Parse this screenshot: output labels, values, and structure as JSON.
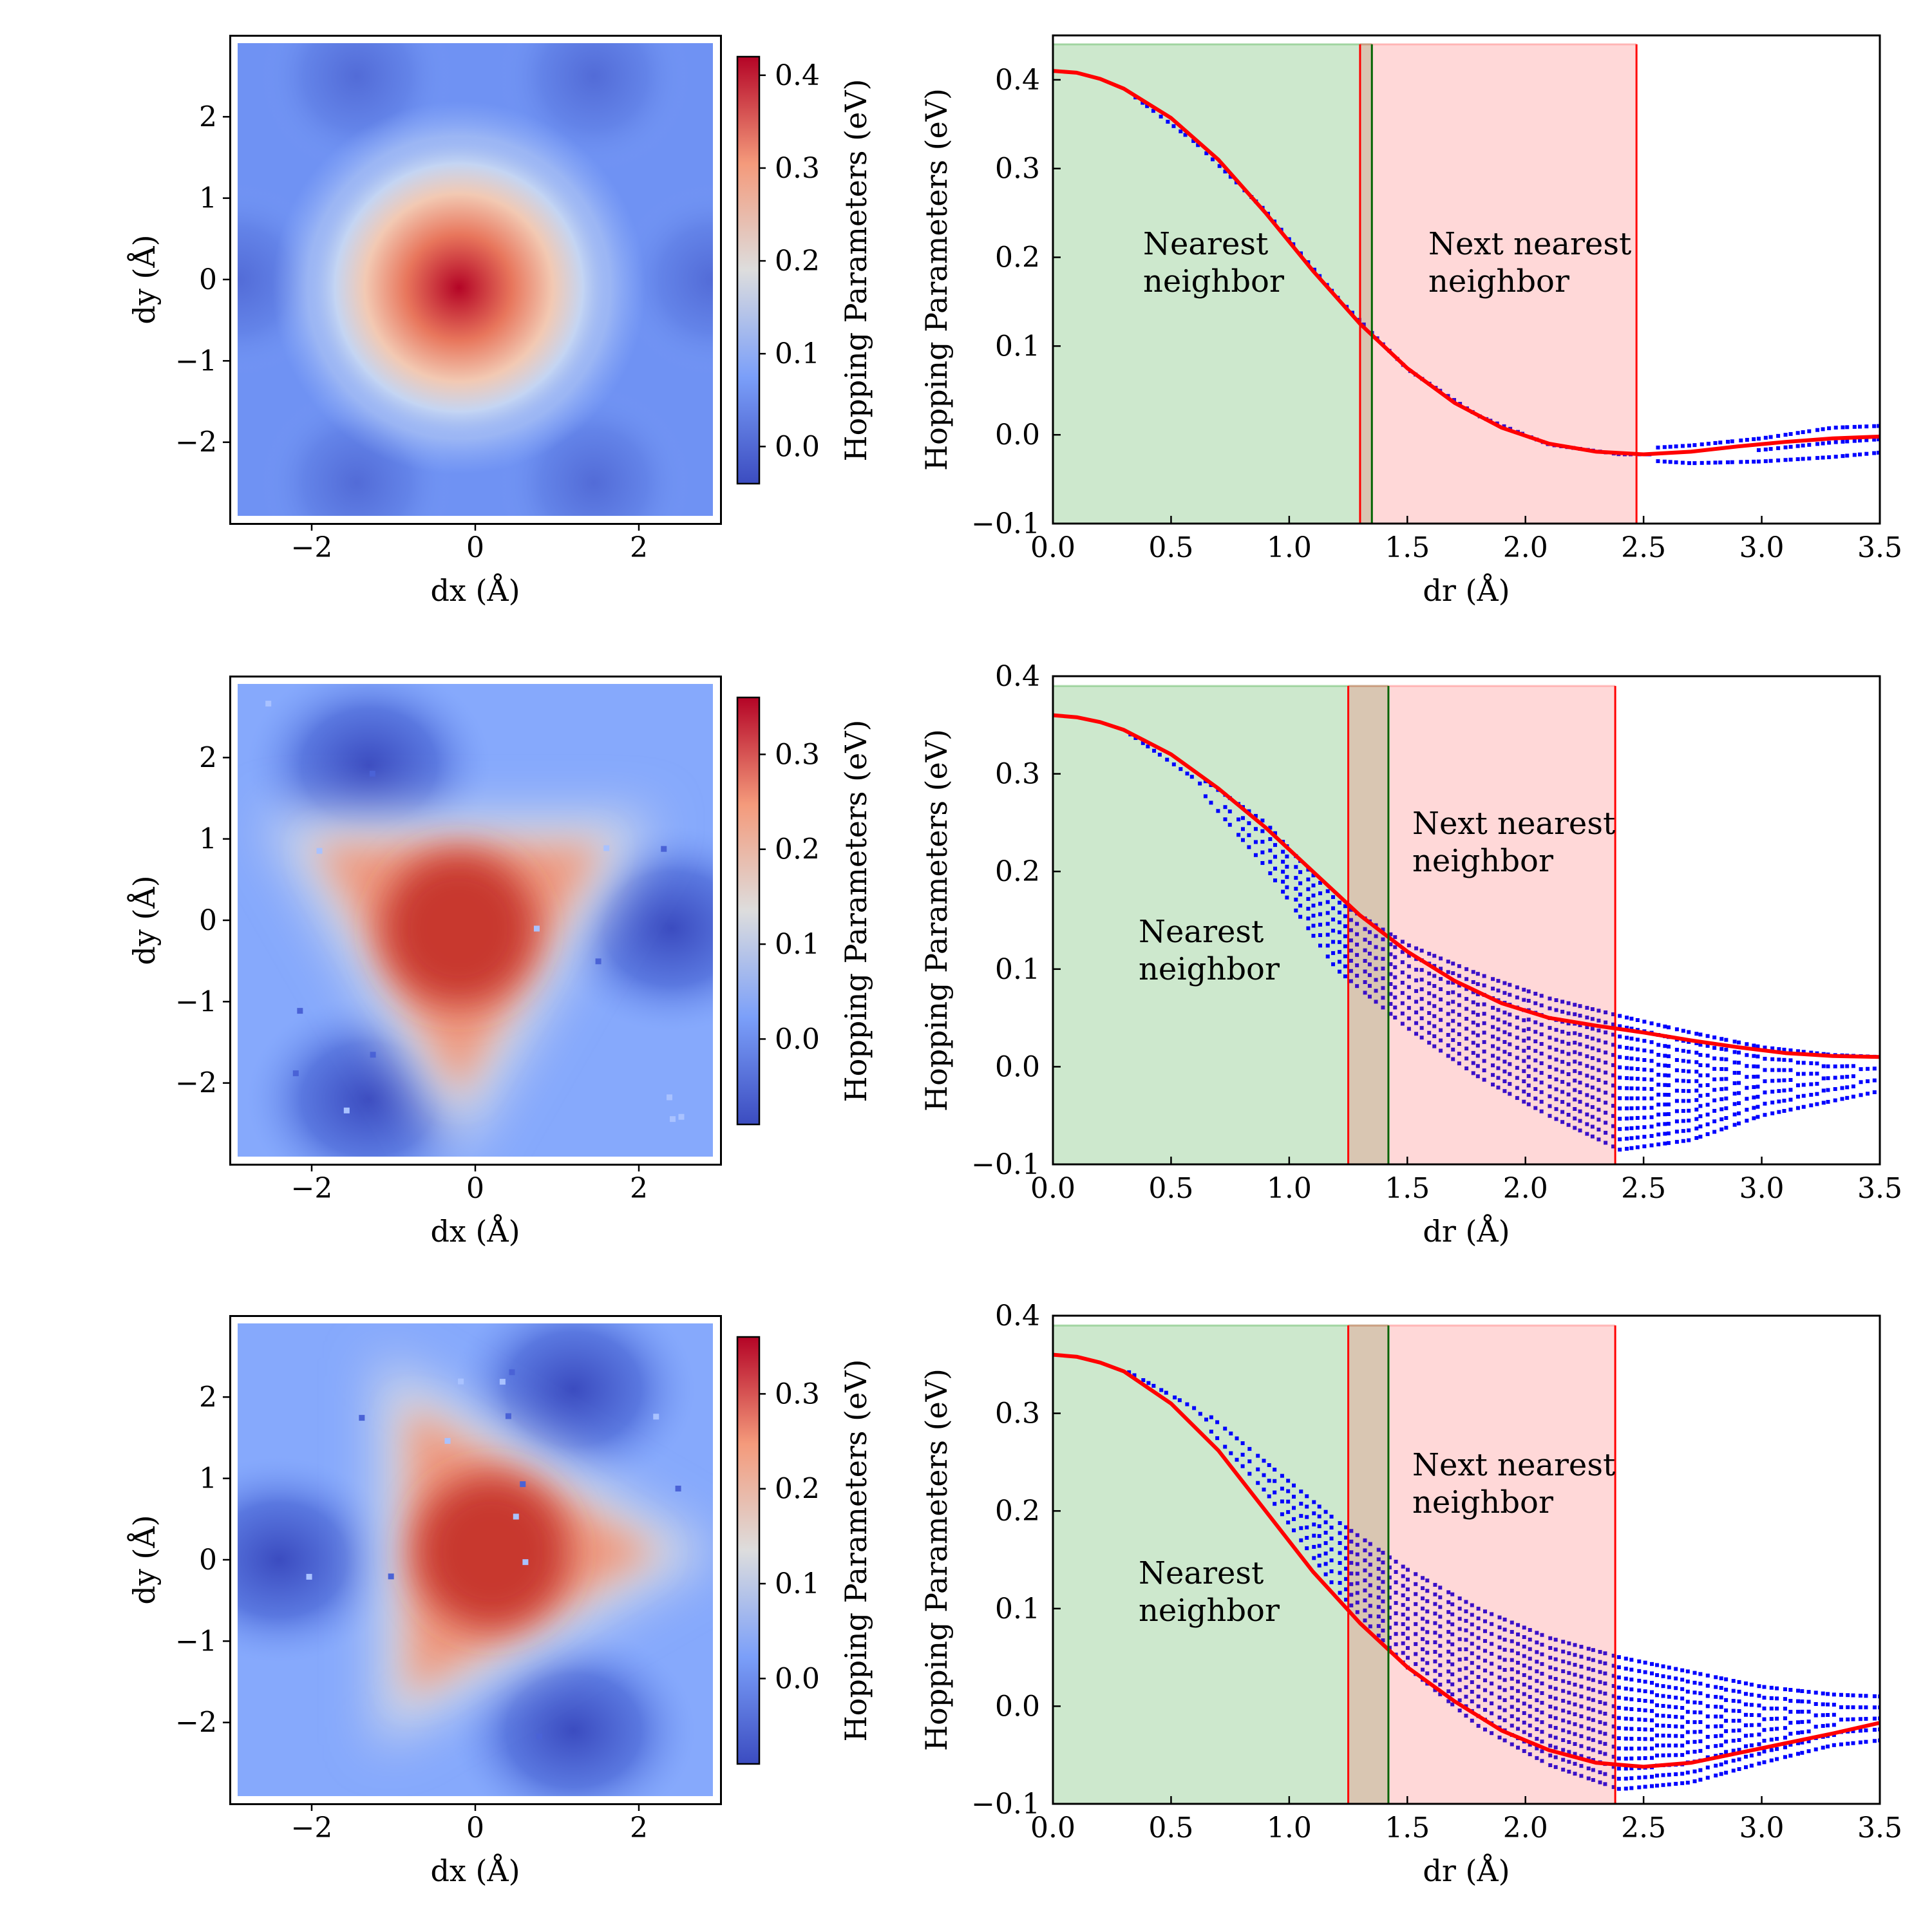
{
  "chart_data": [
    {
      "type": "heatmap",
      "xlabel": "dx (Å)",
      "ylabel": "dy (Å)",
      "xlim": [
        -3,
        3
      ],
      "ylim": [
        -3,
        3
      ],
      "xticks": [
        -2,
        0,
        2
      ],
      "yticks": [
        -2,
        -1,
        0,
        1,
        2
      ],
      "colorbar": {
        "label": "Hopping Parameters (eV)",
        "range": [
          -0.04,
          0.42
        ],
        "ticks": [
          0.0,
          0.1,
          0.2,
          0.3,
          0.4
        ],
        "colormap": "coolwarm"
      },
      "pattern": "circular",
      "center": [
        -0.2,
        -0.1
      ],
      "peak_value": 0.41
    },
    {
      "type": "scatter",
      "xlabel": "dr (Å)",
      "ylabel": "Hopping Parameters (eV)",
      "xlim": [
        0.0,
        3.5
      ],
      "ylim": [
        -0.1,
        0.45
      ],
      "xticks": [
        0.0,
        0.5,
        1.0,
        1.5,
        2.0,
        2.5,
        3.0,
        3.5
      ],
      "yticks": [
        -0.1,
        0.0,
        0.1,
        0.2,
        0.3,
        0.4
      ],
      "regions": [
        {
          "label": "Nearest neighbor",
          "x_range": [
            0.0,
            1.35
          ],
          "color": "#2ca02c"
        },
        {
          "label": "Next nearest neighbor",
          "x_range": [
            1.3,
            2.47
          ],
          "color": "#ff5a5a"
        }
      ],
      "vlines": [
        {
          "x": 1.3,
          "color": "#ff0000"
        },
        {
          "x": 1.35,
          "color": "#006400"
        },
        {
          "x": 2.47,
          "color": "#ff0000"
        }
      ],
      "fit_curve": {
        "color": "#ff0000",
        "x": [
          0.0,
          0.1,
          0.2,
          0.3,
          0.5,
          0.7,
          0.9,
          1.1,
          1.3,
          1.5,
          1.7,
          1.9,
          2.1,
          2.3,
          2.5,
          2.7,
          2.9,
          3.1,
          3.3,
          3.5
        ],
        "y": [
          0.41,
          0.408,
          0.401,
          0.39,
          0.357,
          0.31,
          0.25,
          0.185,
          0.125,
          0.075,
          0.036,
          0.008,
          -0.01,
          -0.019,
          -0.022,
          -0.019,
          -0.013,
          -0.008,
          -0.004,
          -0.002
        ]
      },
      "scatter_points": {
        "color": "#0000ff",
        "x": [
          0.0,
          0.3,
          0.6,
          0.9,
          1.2,
          1.5,
          1.8,
          2.1,
          2.4,
          2.7,
          3.0,
          3.3,
          3.5
        ],
        "y_upper": [
          0.41,
          0.39,
          0.33,
          0.255,
          0.16,
          0.078,
          0.025,
          -0.008,
          -0.017,
          -0.012,
          -0.004,
          0.008,
          0.01
        ],
        "y_lower": [
          0.41,
          0.39,
          0.33,
          0.25,
          0.152,
          0.07,
          0.018,
          -0.014,
          -0.027,
          -0.032,
          -0.03,
          -0.025,
          -0.02
        ]
      }
    },
    {
      "type": "heatmap",
      "xlabel": "dx (Å)",
      "ylabel": "dy (Å)",
      "xlim": [
        -3,
        3
      ],
      "ylim": [
        -3,
        3
      ],
      "xticks": [
        -2,
        0,
        2
      ],
      "yticks": [
        -2,
        -1,
        0,
        1,
        2
      ],
      "colorbar": {
        "label": "Hopping Parameters (eV)",
        "range": [
          -0.09,
          0.36
        ],
        "ticks": [
          0.0,
          0.1,
          0.2,
          0.3
        ],
        "colormap": "coolwarm"
      },
      "pattern": "triangle-up",
      "center": [
        -0.2,
        -0.1
      ],
      "peak_value": 0.36
    },
    {
      "type": "scatter",
      "xlabel": "dr (Å)",
      "ylabel": "Hopping Parameters (eV)",
      "xlim": [
        0.0,
        3.5
      ],
      "ylim": [
        -0.1,
        0.4
      ],
      "xticks": [
        0.0,
        0.5,
        1.0,
        1.5,
        2.0,
        2.5,
        3.0,
        3.5
      ],
      "yticks": [
        -0.1,
        0.0,
        0.1,
        0.2,
        0.3,
        0.4
      ],
      "regions": [
        {
          "label": "Nearest neighbor",
          "x_range": [
            0.0,
            1.42
          ],
          "color": "#2ca02c"
        },
        {
          "label": "Next nearest neighbor",
          "x_range": [
            1.25,
            2.38
          ],
          "color": "#ff5a5a"
        }
      ],
      "vlines": [
        {
          "x": 1.25,
          "color": "#ff0000"
        },
        {
          "x": 1.42,
          "color": "#006400"
        },
        {
          "x": 2.38,
          "color": "#ff0000"
        }
      ],
      "fit_curve": {
        "color": "#ff0000",
        "x": [
          0.0,
          0.1,
          0.2,
          0.3,
          0.5,
          0.7,
          0.9,
          1.1,
          1.3,
          1.5,
          1.7,
          1.9,
          2.1,
          2.3,
          2.5,
          2.7,
          2.9,
          3.1,
          3.3,
          3.5
        ],
        "y": [
          0.36,
          0.358,
          0.353,
          0.345,
          0.32,
          0.285,
          0.245,
          0.2,
          0.155,
          0.118,
          0.088,
          0.065,
          0.05,
          0.042,
          0.035,
          0.027,
          0.02,
          0.014,
          0.011,
          0.01
        ]
      },
      "scatter_points": {
        "color": "#0000ff",
        "x": [
          0.0,
          0.3,
          0.6,
          0.9,
          1.2,
          1.5,
          1.8,
          2.1,
          2.4,
          2.7,
          3.0,
          3.3,
          3.5
        ],
        "y_upper": [
          0.36,
          0.345,
          0.3,
          0.25,
          0.17,
          0.125,
          0.095,
          0.07,
          0.052,
          0.035,
          0.02,
          0.012,
          0.01
        ],
        "y_lower": [
          0.36,
          0.345,
          0.29,
          0.205,
          0.1,
          0.04,
          -0.01,
          -0.05,
          -0.085,
          -0.075,
          -0.05,
          -0.035,
          -0.025
        ]
      }
    },
    {
      "type": "heatmap",
      "xlabel": "dx (Å)",
      "ylabel": "dy (Å)",
      "xlim": [
        -3,
        3
      ],
      "ylim": [
        -3,
        3
      ],
      "xticks": [
        -2,
        0,
        2
      ],
      "yticks": [
        -2,
        -1,
        0,
        1,
        2
      ],
      "colorbar": {
        "label": "Hopping Parameters (eV)",
        "range": [
          -0.09,
          0.36
        ],
        "ticks": [
          0.0,
          0.1,
          0.2,
          0.3
        ],
        "colormap": "coolwarm"
      },
      "pattern": "triangle-right",
      "center": [
        0.2,
        0.1
      ],
      "peak_value": 0.36
    },
    {
      "type": "scatter",
      "xlabel": "dr (Å)",
      "ylabel": "Hopping Parameters (eV)",
      "xlim": [
        0.0,
        3.5
      ],
      "ylim": [
        -0.1,
        0.4
      ],
      "xticks": [
        0.0,
        0.5,
        1.0,
        1.5,
        2.0,
        2.5,
        3.0,
        3.5
      ],
      "yticks": [
        -0.1,
        0.0,
        0.1,
        0.2,
        0.3,
        0.4
      ],
      "regions": [
        {
          "label": "Nearest neighbor",
          "x_range": [
            0.0,
            1.42
          ],
          "color": "#2ca02c"
        },
        {
          "label": "Next nearest neighbor",
          "x_range": [
            1.25,
            2.38
          ],
          "color": "#ff5a5a"
        }
      ],
      "vlines": [
        {
          "x": 1.25,
          "color": "#ff0000"
        },
        {
          "x": 1.42,
          "color": "#006400"
        },
        {
          "x": 2.38,
          "color": "#ff0000"
        }
      ],
      "fit_curve": {
        "color": "#ff0000",
        "x": [
          0.0,
          0.1,
          0.2,
          0.3,
          0.5,
          0.7,
          0.9,
          1.1,
          1.3,
          1.5,
          1.7,
          1.9,
          2.1,
          2.3,
          2.5,
          2.7,
          2.9,
          3.1,
          3.3,
          3.5
        ],
        "y": [
          0.36,
          0.358,
          0.352,
          0.343,
          0.31,
          0.262,
          0.2,
          0.138,
          0.085,
          0.04,
          0.005,
          -0.025,
          -0.045,
          -0.058,
          -0.062,
          -0.058,
          -0.048,
          -0.038,
          -0.028,
          -0.017
        ]
      },
      "scatter_points": {
        "color": "#0000ff",
        "x": [
          0.0,
          0.3,
          0.6,
          0.9,
          1.2,
          1.5,
          1.8,
          2.1,
          2.4,
          2.7,
          3.0,
          3.3,
          3.5
        ],
        "y_upper": [
          0.36,
          0.345,
          0.31,
          0.25,
          0.19,
          0.14,
          0.1,
          0.07,
          0.05,
          0.035,
          0.02,
          0.012,
          0.01
        ],
        "y_lower": [
          0.36,
          0.345,
          0.3,
          0.22,
          0.12,
          0.04,
          -0.02,
          -0.06,
          -0.085,
          -0.078,
          -0.058,
          -0.04,
          -0.035
        ]
      }
    }
  ],
  "annotations": {
    "nearest_line1": "Nearest",
    "nearest_line2": "neighbor",
    "next_line1": "Next nearest",
    "next_line2": "neighbor"
  }
}
